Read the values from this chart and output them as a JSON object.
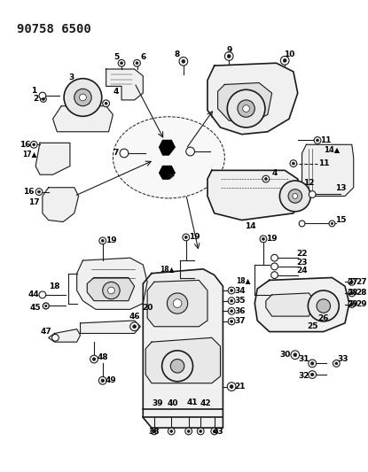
{
  "title": "90758 6500",
  "bg_color": "#ffffff",
  "line_color": "#1a1a1a",
  "title_fontsize": 10,
  "figsize": [
    4.15,
    5.33
  ],
  "dpi": 100,
  "label_fontsize": 6.5,
  "label_fontweight": "bold"
}
